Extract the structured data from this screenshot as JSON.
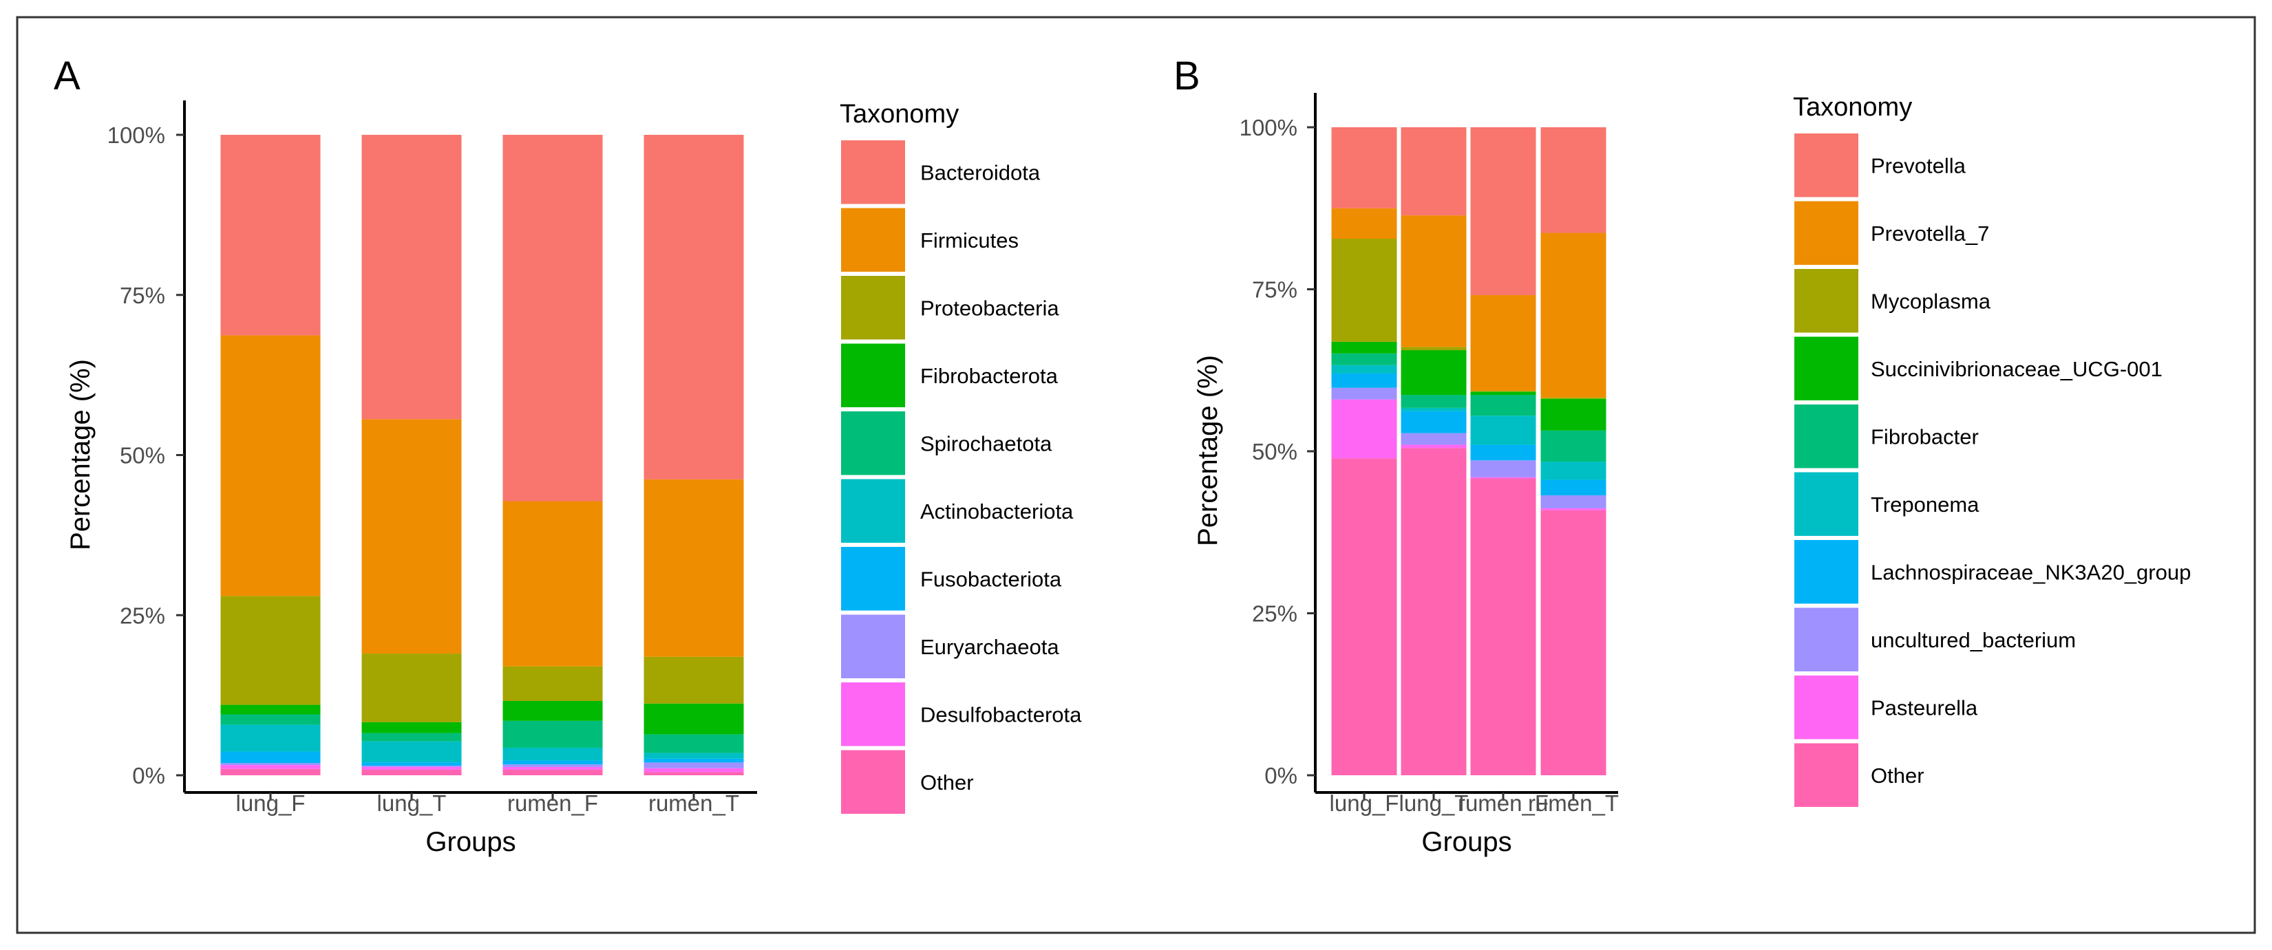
{
  "chart_data": [
    {
      "panel_label": "A",
      "type": "bar",
      "stacked": true,
      "title": "",
      "xlabel": "Groups",
      "ylabel": "Percentage (%)",
      "ylim": [
        0,
        100
      ],
      "yticks": [
        "0%",
        "25%",
        "50%",
        "75%",
        "100%"
      ],
      "categories": [
        "lung_F",
        "lung_T",
        "rumen_F",
        "rumen_T"
      ],
      "legend_title": "Taxonomy",
      "legend_position": "right",
      "grid": false,
      "series": [
        {
          "name": "Other",
          "color": "#FF64B0",
          "values": [
            1.0,
            0.9,
            0.9,
            0.5
          ]
        },
        {
          "name": "Desulfobacterota",
          "color": "#FF66F4",
          "values": [
            0.6,
            0.4,
            0.4,
            0.6
          ]
        },
        {
          "name": "Euryarchaeota",
          "color": "#9F91FF",
          "values": [
            0.3,
            0.2,
            0.4,
            0.9
          ]
        },
        {
          "name": "Fusobacteriota",
          "color": "#00B3F7",
          "values": [
            1.8,
            0.5,
            0.6,
            0.6
          ]
        },
        {
          "name": "Actinobacteriota",
          "color": "#00BFC4",
          "values": [
            4.2,
            3.3,
            2.0,
            0.9
          ]
        },
        {
          "name": "Spirochaetota",
          "color": "#00BD79",
          "values": [
            1.6,
            1.3,
            4.2,
            2.9
          ]
        },
        {
          "name": "Fibrobacterota",
          "color": "#00B900",
          "values": [
            1.5,
            1.7,
            3.1,
            4.8
          ]
        },
        {
          "name": "Proteobacteria",
          "color": "#A3A500",
          "values": [
            17.0,
            10.7,
            5.4,
            7.3
          ]
        },
        {
          "name": "Firmicutes",
          "color": "#EE8D00",
          "values": [
            40.7,
            36.6,
            25.8,
            27.7
          ]
        },
        {
          "name": "Bacteroidota",
          "color": "#F8766D",
          "values": [
            31.3,
            44.4,
            57.2,
            53.8
          ]
        }
      ],
      "legend_order": [
        "Bacteroidota",
        "Firmicutes",
        "Proteobacteria",
        "Fibrobacterota",
        "Spirochaetota",
        "Actinobacteriota",
        "Fusobacteriota",
        "Euryarchaeota",
        "Desulfobacterota",
        "Other"
      ]
    },
    {
      "panel_label": "B",
      "type": "bar",
      "stacked": true,
      "title": "",
      "xlabel": "Groups",
      "ylabel": "Percentage (%)",
      "ylim": [
        0,
        100
      ],
      "yticks": [
        "0%",
        "25%",
        "50%",
        "75%",
        "100%"
      ],
      "categories": [
        "lung_F",
        "lung_T",
        "rumen_F",
        "rumen_T"
      ],
      "legend_title": "Taxonomy",
      "legend_position": "right",
      "grid": false,
      "series": [
        {
          "name": "Other",
          "color": "#FF64B0",
          "values": [
            48.9,
            50.5,
            45.8,
            40.9
          ]
        },
        {
          "name": "Pasteurella",
          "color": "#FF66F4",
          "values": [
            9.1,
            0.5,
            0.2,
            0.3
          ]
        },
        {
          "name": "uncultured_bacterium",
          "color": "#9F91FF",
          "values": [
            1.8,
            1.8,
            2.6,
            2.0
          ]
        },
        {
          "name": "Lachnospiraceae_NK3A20_group",
          "color": "#00B3F7",
          "values": [
            2.2,
            3.4,
            2.4,
            2.4
          ]
        },
        {
          "name": "Treponema",
          "color": "#00BFC4",
          "values": [
            1.3,
            0.5,
            4.5,
            2.8
          ]
        },
        {
          "name": "Fibrobacter",
          "color": "#00BD79",
          "values": [
            1.8,
            2.0,
            3.2,
            4.8
          ]
        },
        {
          "name": "Succinivibrionaceae_UCG-001",
          "color": "#00B900",
          "values": [
            1.8,
            6.9,
            0.5,
            4.9
          ]
        },
        {
          "name": "Mycoplasma",
          "color": "#A3A500",
          "values": [
            15.9,
            0.5,
            0.1,
            0.2
          ]
        },
        {
          "name": "Prevotella_7",
          "color": "#EE8D00",
          "values": [
            4.7,
            20.3,
            14.8,
            25.4
          ]
        },
        {
          "name": "Prevotella",
          "color": "#F8766D",
          "values": [
            12.5,
            13.6,
            25.9,
            16.3
          ]
        }
      ],
      "legend_order": [
        "Prevotella",
        "Prevotella_7",
        "Mycoplasma",
        "Succinivibrionaceae_UCG-001",
        "Fibrobacter",
        "Treponema",
        "Lachnospiraceae_NK3A20_group",
        "uncultured_bacterium",
        "Pasteurella",
        "Other"
      ]
    }
  ]
}
